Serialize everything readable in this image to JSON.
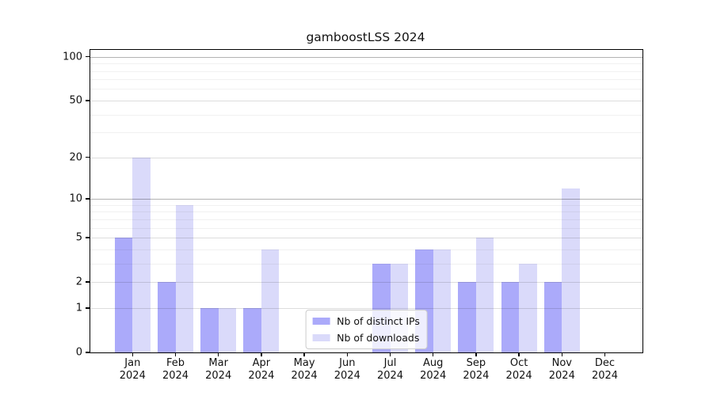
{
  "title": "gamboostLSS 2024",
  "legend": {
    "items": [
      {
        "label": "Nb of distinct IPs",
        "color": "#abaafa"
      },
      {
        "label": "Nb of downloads",
        "color": "#dadafa"
      }
    ]
  },
  "chart_data": {
    "type": "bar",
    "title": "gamboostLSS 2024",
    "categories": [
      "Jan 2024",
      "Feb 2024",
      "Mar 2024",
      "Apr 2024",
      "May 2024",
      "Jun 2024",
      "Jul 2024",
      "Aug 2024",
      "Sep 2024",
      "Oct 2024",
      "Nov 2024",
      "Dec 2024"
    ],
    "x_tick_month": [
      "Jan",
      "Feb",
      "Mar",
      "Apr",
      "May",
      "Jun",
      "Jul",
      "Aug",
      "Sep",
      "Oct",
      "Nov",
      "Dec"
    ],
    "x_tick_year": "2024",
    "series": [
      {
        "name": "Nb of distinct IPs",
        "color": "#abaafa",
        "values": [
          5,
          2,
          1,
          1,
          0,
          0,
          3,
          4,
          2,
          2,
          2,
          0
        ]
      },
      {
        "name": "Nb of downloads",
        "color": "#dadafa",
        "values": [
          20,
          9,
          1,
          4,
          0,
          0,
          3,
          4,
          5,
          3,
          12,
          0
        ]
      }
    ],
    "yscale": "log1p",
    "y_axis_ticks": [
      0,
      1,
      2,
      5,
      10,
      20,
      50,
      100
    ],
    "y_gridlines_strong": [
      10,
      100
    ],
    "y_gridlines_major": [
      1,
      2,
      5,
      20,
      50
    ],
    "y_gridlines_minor": [
      3,
      4,
      6,
      7,
      8,
      9,
      30,
      40,
      60,
      70,
      80,
      90
    ],
    "ylim": [
      0,
      110
    ],
    "grid": true,
    "legend_position": "lower center"
  }
}
